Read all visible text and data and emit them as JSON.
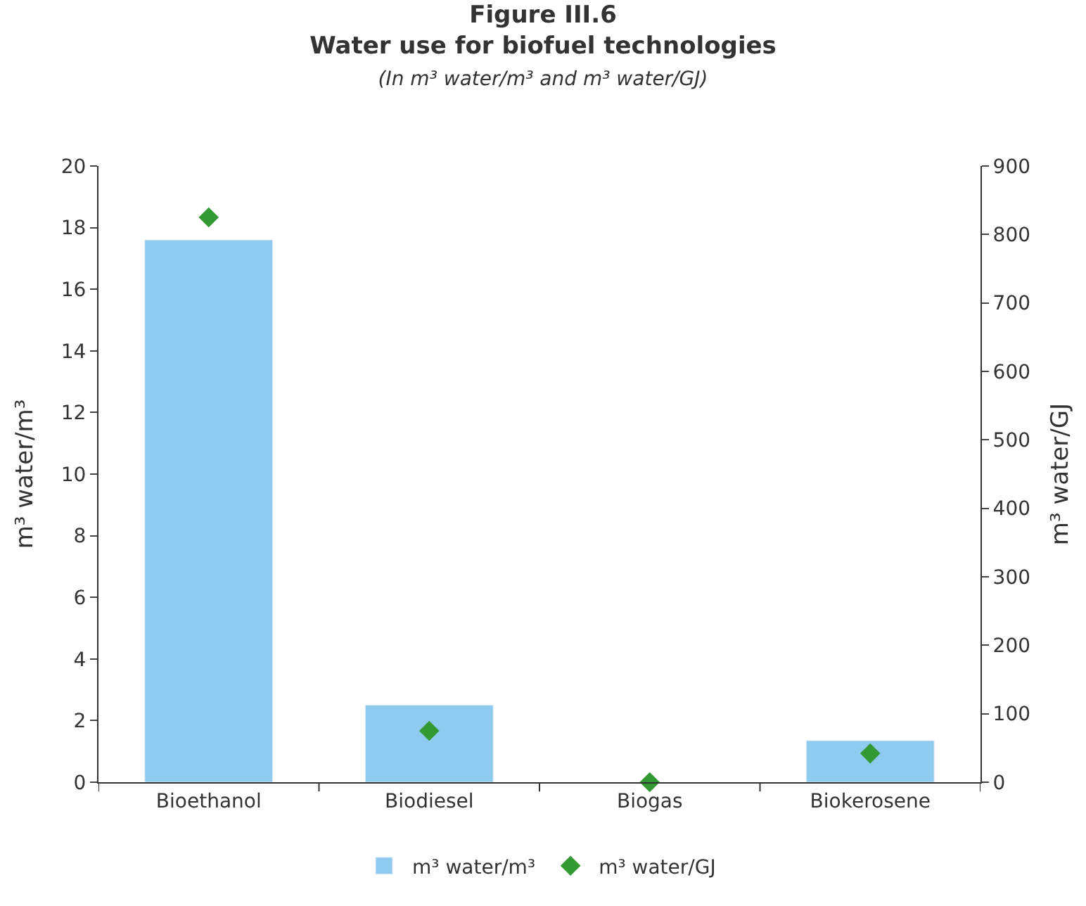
{
  "chart_data": {
    "type": "bar",
    "title": "Figure III.6\nWater use for biofuel technologies",
    "subtitle": "(In m³ water/m³ and m³ water/GJ)",
    "categories": [
      "Bioethanol",
      "Biodiesel",
      "Biogas",
      "Biokerosene"
    ],
    "series": [
      {
        "name": "m³ water/m³",
        "color": "#8ecbee",
        "values": [
          17.6,
          2.5,
          null,
          1.35
        ]
      },
      {
        "name": "m³ water/GJ",
        "color": "#339933",
        "type": "scatter",
        "marker": "diamond",
        "axis": "y2",
        "values": [
          825,
          75,
          0,
          42
        ]
      }
    ],
    "ylabel": "m³ water/m³",
    "y2label": "m³ water/GJ",
    "ylim": [
      0,
      20
    ],
    "yticks": [
      0,
      2,
      4,
      6,
      8,
      10,
      12,
      14,
      16,
      18,
      20
    ],
    "y2lim": [
      0,
      900
    ],
    "y2ticks": [
      0,
      100,
      200,
      300,
      400,
      500,
      600,
      700,
      800,
      900
    ],
    "legend": "bottom"
  }
}
